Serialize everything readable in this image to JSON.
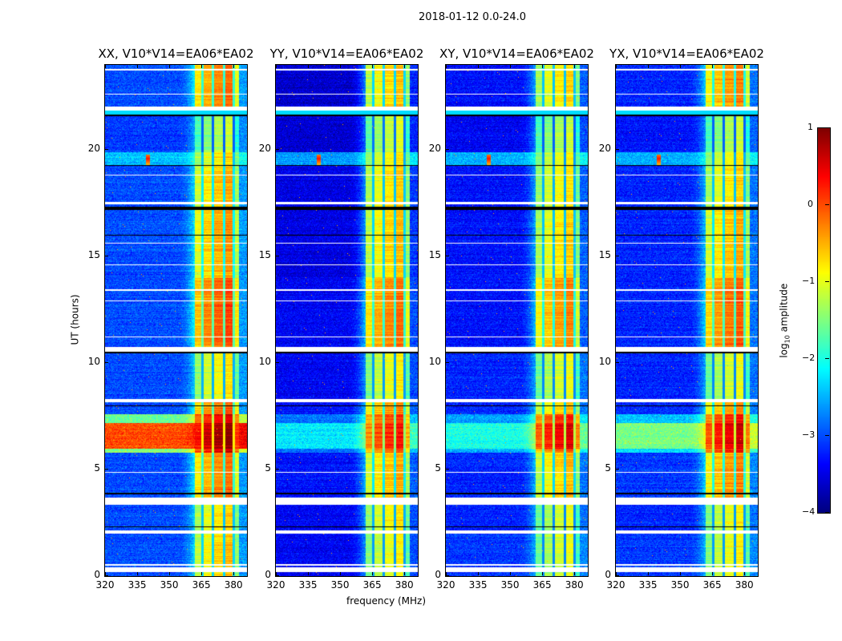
{
  "suptitle": "2018-01-12 0.0-24.0",
  "ylabel": "UT (hours)",
  "xlabel": "frequency (MHz)",
  "colorbar": {
    "label_prefix": "log",
    "label_sub": "10",
    "label_suffix": " amplitude",
    "vmin": -4,
    "vmax": 1,
    "ticks": [
      1,
      0,
      -1,
      -2,
      -3,
      -4
    ],
    "tick_labels": [
      "1",
      "0",
      "−1",
      "−2",
      "−3",
      "−4"
    ],
    "colormap": "jet"
  },
  "chart_data": {
    "type": "heatmap",
    "title": "2018-01-12 0.0-24.0",
    "xlabel": "frequency (MHz)",
    "ylabel": "UT (hours)",
    "xlim": [
      320,
      386.3
    ],
    "ylim": [
      0,
      24
    ],
    "xticks": [
      320,
      335,
      350,
      365,
      380
    ],
    "xtick_labels": [
      "320",
      "335",
      "350",
      "365",
      "380"
    ],
    "yticks": [
      0,
      5,
      10,
      15,
      20
    ],
    "ytick_labels": [
      "0",
      "5",
      "10",
      "15",
      "20"
    ],
    "value": "log10 amplitude",
    "panels": [
      {
        "title": "XX, V10*V14=EA06*EA02"
      },
      {
        "title": "YY, V10*V14=EA06*EA02"
      },
      {
        "title": "XY, V10*V14=EA06*EA02"
      },
      {
        "title": "YX, V10*V14=EA06*EA02"
      }
    ],
    "band_mhz": [
      362.0,
      382.5
    ],
    "band_notches_mhz": [
      365.5,
      370.5,
      375.5,
      380.0
    ],
    "subband_offsets": [
      -0.3,
      0.0,
      0.2,
      0.35,
      -0.5
    ],
    "segments": [
      {
        "t": [
          0.0,
          2.0
        ],
        "band": [
          -0.9,
          -1.2,
          -1.3,
          -1.2
        ],
        "bg": [
          -3.0,
          -3.4,
          -3.1,
          -3.1
        ]
      },
      {
        "t": [
          2.0,
          3.35
        ],
        "band": [
          -1.0,
          -1.1,
          -1.3,
          -1.2
        ],
        "bg": [
          -3.0,
          -3.4,
          -3.2,
          -3.2
        ]
      },
      {
        "t": [
          3.7,
          5.8
        ],
        "band": [
          -0.5,
          -0.8,
          -0.9,
          -0.6
        ],
        "bg": [
          -3.0,
          -3.3,
          -3.2,
          -3.1
        ]
      },
      {
        "t": [
          5.8,
          6.0
        ],
        "band": [
          0.2,
          -0.3,
          -0.3,
          0.0
        ],
        "bg": [
          -1.5,
          -2.8,
          -2.5,
          -2.3
        ]
      },
      {
        "t": [
          6.0,
          7.2
        ],
        "band": [
          0.6,
          0.0,
          0.2,
          0.3
        ],
        "bg": [
          0.0,
          -2.2,
          -2.0,
          -1.5
        ]
      },
      {
        "t": [
          7.2,
          7.6
        ],
        "band": [
          0.2,
          -0.2,
          -0.1,
          0.0
        ],
        "bg": [
          -1.6,
          -2.8,
          -2.6,
          -2.4
        ]
      },
      {
        "t": [
          7.6,
          8.15
        ],
        "band": [
          -0.4,
          -0.6,
          -0.9,
          -0.7
        ],
        "bg": [
          -3.0,
          -3.3,
          -3.2,
          -3.2
        ]
      },
      {
        "t": [
          8.3,
          10.45
        ],
        "band": [
          -1.1,
          -1.2,
          -1.3,
          -1.3
        ],
        "bg": [
          -3.0,
          -3.4,
          -3.2,
          -3.2
        ]
      },
      {
        "t": [
          10.75,
          14.0
        ],
        "band": [
          -0.3,
          -0.5,
          -0.6,
          -0.4
        ],
        "bg": [
          -3.0,
          -3.4,
          -3.3,
          -3.2
        ]
      },
      {
        "t": [
          14.0,
          17.2
        ],
        "band": [
          -0.7,
          -0.9,
          -1.0,
          -0.8
        ],
        "bg": [
          -3.0,
          -3.5,
          -3.3,
          -3.2
        ]
      },
      {
        "t": [
          17.35,
          19.3
        ],
        "band": [
          -0.8,
          -1.0,
          -1.1,
          -1.0
        ],
        "bg": [
          -3.0,
          -3.5,
          -3.3,
          -3.2
        ]
      },
      {
        "t": [
          19.3,
          19.9
        ],
        "band": [
          -1.0,
          -1.1,
          -1.2,
          -1.1
        ],
        "bg": [
          -2.4,
          -2.6,
          -2.5,
          -2.5
        ]
      },
      {
        "t": [
          19.9,
          21.6
        ],
        "band": [
          -1.5,
          -1.4,
          -1.5,
          -1.5
        ],
        "bg": [
          -3.1,
          -3.6,
          -3.4,
          -3.3
        ]
      },
      {
        "t": [
          22.05,
          24.0
        ],
        "band": [
          -0.5,
          -0.9,
          -1.0,
          -0.6
        ],
        "bg": [
          -3.0,
          -3.6,
          -3.3,
          -3.2
        ]
      }
    ],
    "rfi_events": [
      {
        "t": [
          19.3,
          19.8
        ],
        "f": 340.0,
        "level": 0.3
      }
    ],
    "flagged_rows_white": [
      [
        0.2,
        0.4
      ],
      [
        0.5,
        0.55
      ],
      [
        2.0,
        2.15
      ],
      [
        3.35,
        3.7
      ],
      [
        4.85,
        4.9
      ],
      [
        8.15,
        8.3
      ],
      [
        10.55,
        10.75
      ],
      [
        11.2,
        11.25
      ],
      [
        12.9,
        12.95
      ],
      [
        13.4,
        13.45
      ],
      [
        14.6,
        14.65
      ],
      [
        15.6,
        15.65
      ],
      [
        17.45,
        17.55
      ],
      [
        18.8,
        18.85
      ],
      [
        21.85,
        22.05
      ],
      [
        22.6,
        22.65
      ],
      [
        23.75,
        23.8
      ]
    ],
    "flagged_rows_black": [
      [
        2.3,
        2.35
      ],
      [
        3.85,
        3.92
      ],
      [
        7.98,
        8.03
      ],
      [
        10.45,
        10.52
      ],
      [
        16.0,
        16.04
      ],
      [
        17.2,
        17.35
      ],
      [
        19.25,
        19.3
      ],
      [
        21.6,
        21.68
      ]
    ]
  }
}
